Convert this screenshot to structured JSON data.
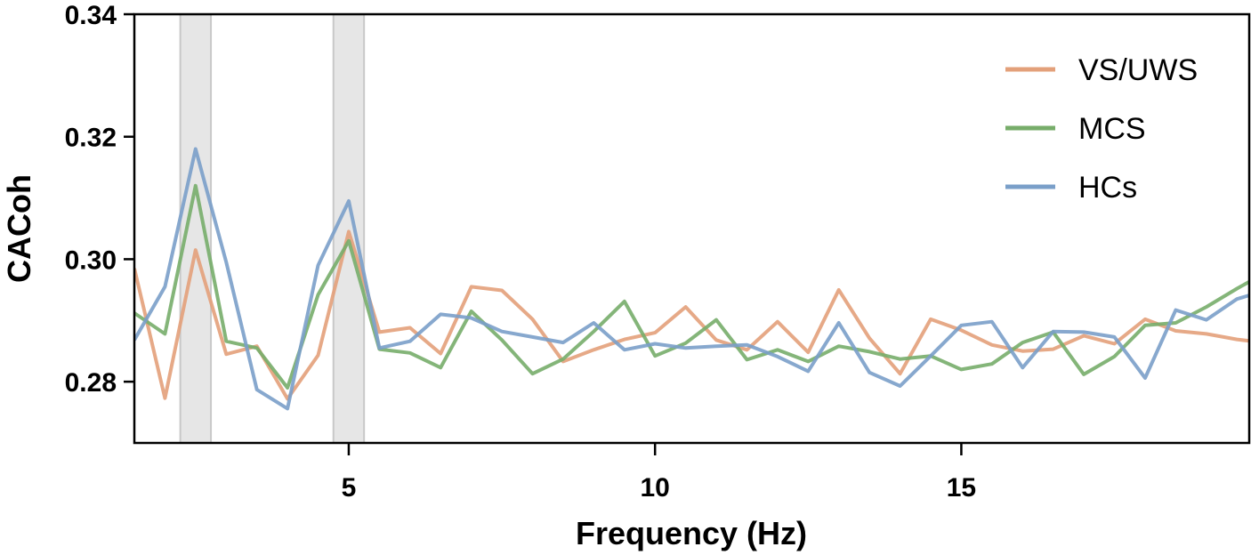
{
  "chart_data": {
    "type": "line",
    "title": "",
    "xlabel": "Frequency (Hz)",
    "ylabel": "CACoh",
    "xlim": [
      1.5,
      19.7
    ],
    "ylim": [
      0.27,
      0.34
    ],
    "x_ticks": [
      5,
      10,
      15
    ],
    "y_ticks": [
      0.28,
      0.3,
      0.32,
      0.34
    ],
    "y_tick_labels": [
      "0.28",
      "0.30",
      "0.32",
      "0.34"
    ],
    "grid": false,
    "legend_position": "top-right",
    "highlight_bands": [
      [
        2.25,
        2.75
      ],
      [
        4.75,
        5.25
      ]
    ],
    "highlight_color": "#e6e6e6",
    "x": [
      1.5,
      2.0,
      2.5,
      3.0,
      3.5,
      4.0,
      4.5,
      5.0,
      5.5,
      6.0,
      6.5,
      7.0,
      7.5,
      8.0,
      8.5,
      9.0,
      9.5,
      10.0,
      10.5,
      11.0,
      11.5,
      12.0,
      12.5,
      13.0,
      13.5,
      14.0,
      14.5,
      15.0,
      15.5,
      16.0,
      16.5,
      17.0,
      17.5,
      18.0,
      18.5,
      19.0,
      19.5,
      20.0
    ],
    "series": [
      {
        "name": "VS/UWS",
        "color": "#e3a07a",
        "values": [
          0.2985,
          0.2773,
          0.3015,
          0.2845,
          0.2858,
          0.2772,
          0.2843,
          0.3045,
          0.2881,
          0.2888,
          0.2846,
          0.2955,
          0.2949,
          0.2902,
          0.2833,
          0.2852,
          0.2869,
          0.288,
          0.2922,
          0.2868,
          0.2852,
          0.2898,
          0.2848,
          0.295,
          0.2871,
          0.2813,
          0.2902,
          0.2884,
          0.286,
          0.285,
          0.2853,
          0.2875,
          0.2862,
          0.2902,
          0.2883,
          0.2878,
          0.2869,
          0.2863
        ]
      },
      {
        "name": "MCS",
        "color": "#77ad6a",
        "values": [
          0.2912,
          0.2878,
          0.312,
          0.2866,
          0.2855,
          0.279,
          0.2942,
          0.303,
          0.2853,
          0.2847,
          0.2823,
          0.2915,
          0.2868,
          0.2813,
          0.2837,
          0.2882,
          0.2931,
          0.2842,
          0.2863,
          0.2901,
          0.2836,
          0.2852,
          0.2833,
          0.2858,
          0.2849,
          0.2837,
          0.2842,
          0.282,
          0.2829,
          0.2864,
          0.2881,
          0.2812,
          0.2841,
          0.2892,
          0.2896,
          0.2922,
          0.2952,
          0.298
        ]
      },
      {
        "name": "HCs",
        "color": "#7a9fc9",
        "values": [
          0.2868,
          0.2955,
          0.318,
          0.2995,
          0.2787,
          0.2756,
          0.299,
          0.3095,
          0.2855,
          0.2866,
          0.291,
          0.2904,
          0.2882,
          0.2873,
          0.2864,
          0.2896,
          0.2852,
          0.2862,
          0.2855,
          0.2858,
          0.286,
          0.2841,
          0.2817,
          0.2896,
          0.2815,
          0.2793,
          0.2842,
          0.2892,
          0.2898,
          0.2823,
          0.2882,
          0.2881,
          0.2873,
          0.2806,
          0.2917,
          0.2901,
          0.2935,
          0.295
        ]
      }
    ]
  }
}
